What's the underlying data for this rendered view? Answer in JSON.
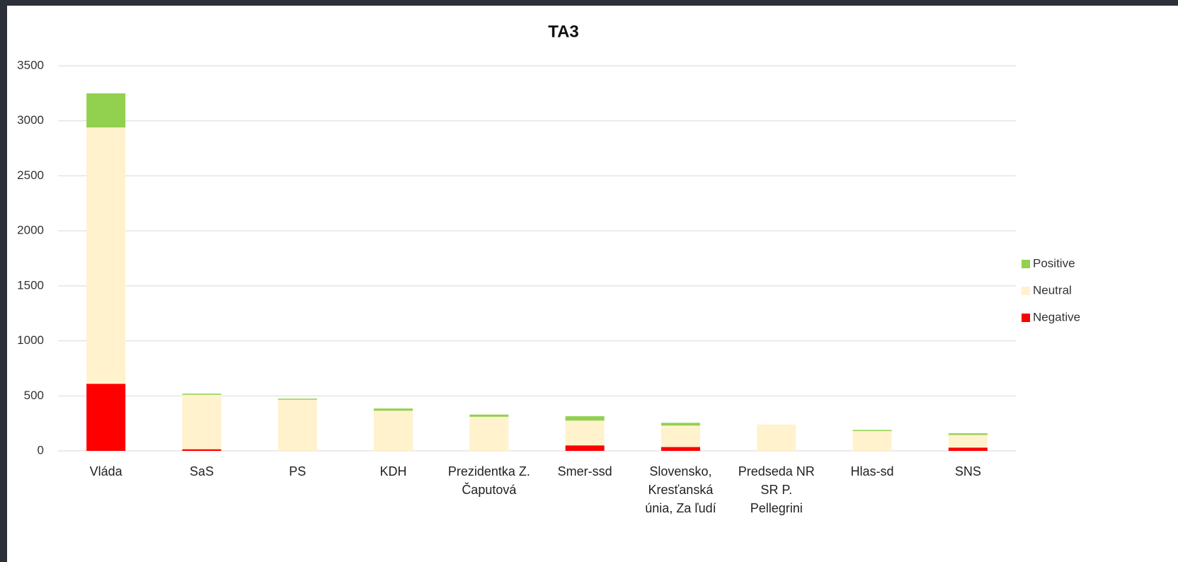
{
  "chart_data": {
    "type": "bar",
    "stacked": true,
    "title": "TA3",
    "categories": [
      "Vláda",
      "SaS",
      "PS",
      "KDH",
      "Prezidentka Z.\nČaputová",
      "Smer-ssd",
      "Slovensko,\nKresťanská\núnia, Za ľudí",
      "Predseda NR\nSR P.\nPellegrini",
      "Hlas-sd",
      "SNS"
    ],
    "series": [
      {
        "name": "Negative",
        "color": "#ff0000",
        "values": [
          610,
          15,
          0,
          0,
          0,
          50,
          35,
          0,
          0,
          30
        ]
      },
      {
        "name": "Neutral",
        "color": "#fff2cc",
        "values": [
          2330,
          495,
          465,
          365,
          310,
          225,
          195,
          240,
          180,
          115
        ]
      },
      {
        "name": "Positive",
        "color": "#92d050",
        "values": [
          310,
          10,
          10,
          20,
          20,
          40,
          25,
          0,
          10,
          15
        ]
      }
    ],
    "ylim": [
      0,
      3500
    ],
    "yticks": [
      0,
      500,
      1000,
      1500,
      2000,
      2500,
      3000,
      3500
    ],
    "grid": true,
    "legend": "right"
  }
}
